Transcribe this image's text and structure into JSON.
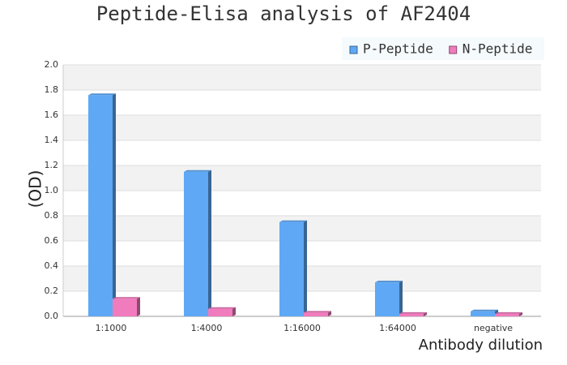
{
  "chart_data": {
    "type": "bar",
    "title": "Peptide-Elisa analysis of AF2404",
    "x_label": "Antibody dilution",
    "y_label": "(OD)",
    "categories": [
      "1:1000",
      "1:4000",
      "1:16000",
      "1:64000",
      "negative"
    ],
    "series": [
      {
        "name": "P-Peptide",
        "color": "#5fa8f5",
        "values": [
          1.76,
          1.15,
          0.75,
          0.27,
          0.04
        ]
      },
      {
        "name": "N-Peptide",
        "color": "#f07bbd",
        "values": [
          0.14,
          0.06,
          0.03,
          0.02,
          0.02
        ]
      }
    ],
    "ylim": [
      0,
      2
    ],
    "yticks": [
      {
        "value": 0,
        "label": "0.0"
      },
      0.2,
      0.4,
      0.6,
      0.8,
      {
        "value": 1,
        "label": "1.0"
      },
      1.2,
      1.4,
      1.6,
      1.8,
      {
        "value": 2,
        "label": "2.0"
      }
    ],
    "grid": true,
    "legend": "top-right"
  }
}
